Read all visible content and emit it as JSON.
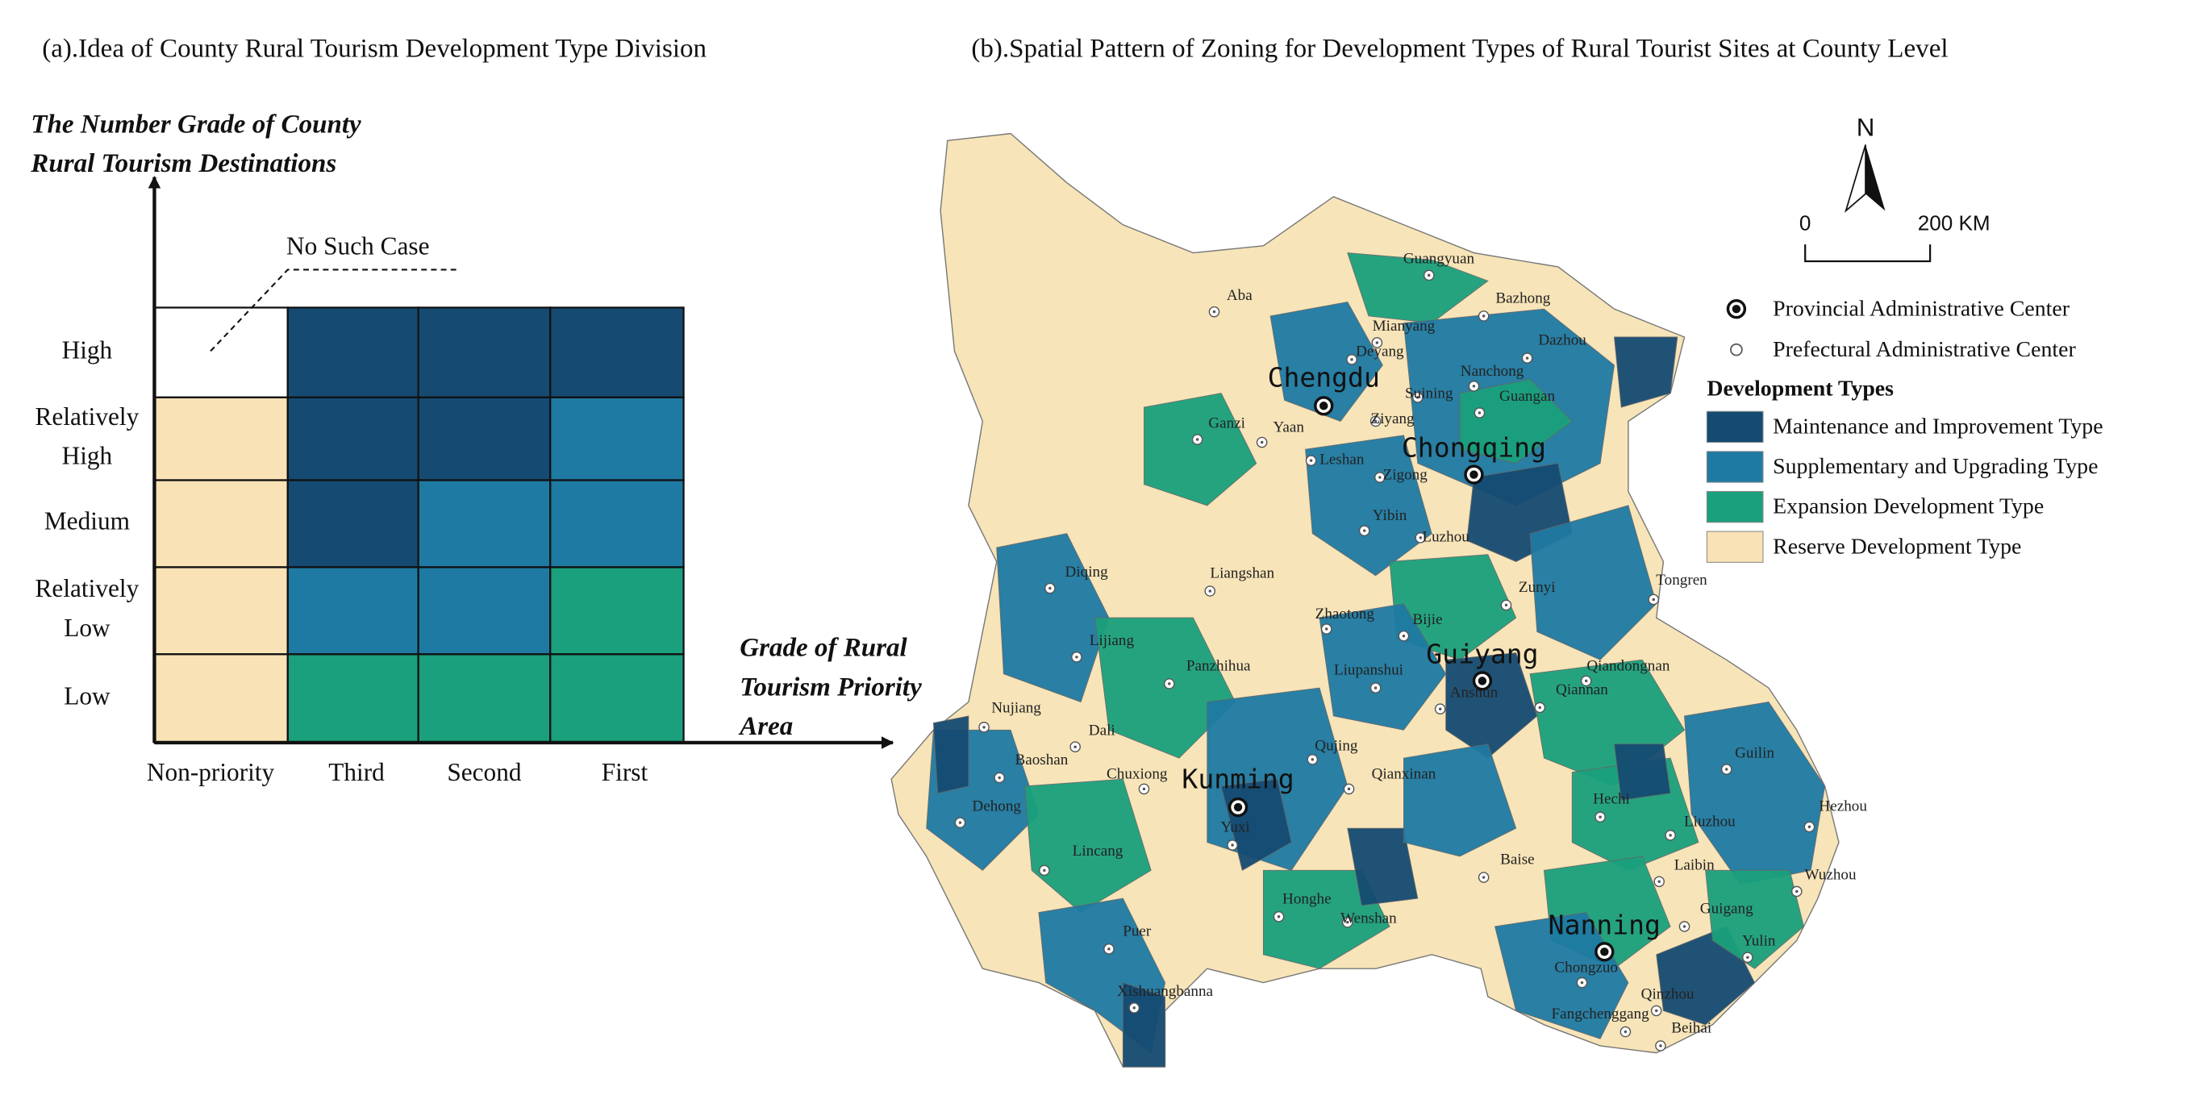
{
  "panel_a": {
    "title": "(a).Idea of County Rural Tourism Development Type Division",
    "y_axis_label": [
      "The Number Grade of County",
      "Rural Tourism Destinations"
    ],
    "x_axis_label": [
      "Grade of Rural",
      "Tourism Priority",
      "Area"
    ],
    "annotation": "No Such Case",
    "rows": [
      [
        "High"
      ],
      [
        "Relatively",
        "High"
      ],
      [
        "Medium"
      ],
      [
        "Relatively",
        "Low"
      ],
      [
        "Low"
      ]
    ],
    "columns": [
      "Non-priority",
      "Third",
      "Second",
      "First"
    ]
  },
  "panel_b": {
    "title": "(b).Spatial Pattern of Zoning for Development Types of Rural Tourist Sites at County Level",
    "north": "N",
    "scale": [
      "0",
      "200 KM"
    ],
    "legend": {
      "provincial": "Provincial Administrative Center",
      "prefectural": "Prefectural Administrative Center",
      "types_title": "Development Types",
      "types": [
        "Maintenance and Improvement Type",
        "Supplementary and Upgrading Type",
        "Expansion Development Type",
        "Reserve Development Type"
      ]
    },
    "provincial_centers": [
      "Chengdu",
      "Chongqing",
      "Guiyang",
      "Kunming",
      "Nanning"
    ],
    "prefectural_centers": [
      "Guangyuan",
      "Aba",
      "Bazhong",
      "Mianyang",
      "Deyang",
      "Dazhou",
      "Nanchong",
      "Suining",
      "Guangan",
      "Ziyang",
      "Ganzi",
      "Yaan",
      "Leshan",
      "Zigong",
      "Yibin",
      "Luzhou",
      "Zunyi",
      "Tongren",
      "Liangshan",
      "Diqing",
      "Zhaotong",
      "Bijie",
      "Lijiang",
      "Panzhihua",
      "Liupanshui",
      "Qiandongnan",
      "Anshun",
      "Qiannan",
      "Nujiang",
      "Dali",
      "Qujing",
      "Baoshan",
      "Chuxiong",
      "Qianxinan",
      "Hechi",
      "Guilin",
      "Dehong",
      "Yuxi",
      "Liuzhou",
      "Hezhou",
      "Lincang",
      "Baise",
      "Laibin",
      "Wuzhou",
      "Honghe",
      "Wenshan",
      "Guigang",
      "Puer",
      "Yulin",
      "Chongzuo",
      "Xishuangbanna",
      "Qinzhou",
      "Fangchenggang",
      "Beihai"
    ]
  }
}
